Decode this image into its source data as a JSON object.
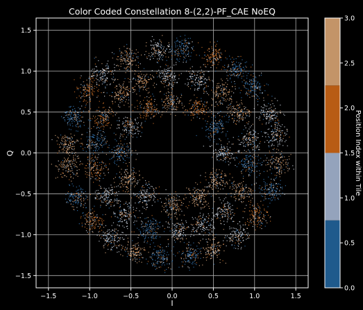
{
  "chart_data": {
    "type": "scatter",
    "title": "Color Coded Constellation 8-(2,2)-PF_CAE NoEQ",
    "xlabel": "I",
    "ylabel": "Q",
    "xlim": [
      -1.65,
      1.65
    ],
    "ylim": [
      -1.65,
      1.65
    ],
    "xticks": [
      -1.5,
      -1.0,
      -0.5,
      0.0,
      0.5,
      1.0,
      1.5
    ],
    "yticks": [
      -1.5,
      -1.0,
      -0.5,
      0.0,
      0.5,
      1.0,
      1.5
    ],
    "grid": true,
    "constellation": {
      "shape": "annulus of clustered points",
      "inner_radius": 0.45,
      "outer_radius": 1.5,
      "ring_radii": [
        0.62,
        0.95,
        1.28
      ],
      "clusters_per_ring": [
        12,
        18,
        24
      ],
      "cluster_spread": 0.07,
      "samples_per_cluster": 130
    },
    "colorbar": {
      "label": "Position Index within Tile",
      "range": [
        0.0,
        3.0
      ],
      "ticks": [
        0.0,
        0.5,
        1.0,
        1.5,
        2.0,
        2.5,
        3.0
      ],
      "levels": [
        {
          "value": 0,
          "color": "#1f5a8c"
        },
        {
          "value": 1,
          "color": "#94a3bc"
        },
        {
          "value": 2,
          "color": "#b85c14"
        },
        {
          "value": 3,
          "color": "#c39468"
        }
      ]
    },
    "point_colors": [
      "#3a7fc0",
      "#dfe6f2",
      "#d9772b",
      "#e9b486"
    ]
  }
}
